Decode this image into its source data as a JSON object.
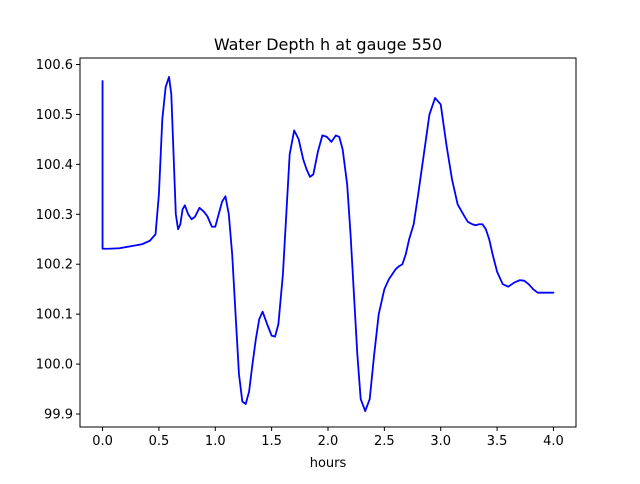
{
  "chart_data": {
    "type": "line",
    "title": "Water Depth h at gauge 550",
    "xlabel": "hours",
    "ylabel": "",
    "xlim": [
      -0.2,
      4.2
    ],
    "ylim": [
      99.874,
      100.613
    ],
    "xticks": [
      0.0,
      0.5,
      1.0,
      1.5,
      2.0,
      2.5,
      3.0,
      3.5,
      4.0
    ],
    "xtick_labels": [
      "0.0",
      "0.5",
      "1.0",
      "1.5",
      "2.0",
      "2.5",
      "3.0",
      "3.5",
      "4.0"
    ],
    "yticks": [
      99.9,
      100.0,
      100.1,
      100.2,
      100.3,
      100.4,
      100.5,
      100.6
    ],
    "ytick_labels": [
      "99.9",
      "100.0",
      "100.1",
      "100.2",
      "100.3",
      "100.4",
      "100.5",
      "100.6"
    ],
    "grid": false,
    "legend": "none",
    "series": [
      {
        "color": "#0000ff",
        "x": [
          0.0,
          0.0,
          0.0,
          0.05,
          0.15,
          0.25,
          0.35,
          0.42,
          0.47,
          0.5,
          0.53,
          0.56,
          0.59,
          0.61,
          0.63,
          0.65,
          0.67,
          0.69,
          0.71,
          0.73,
          0.76,
          0.79,
          0.82,
          0.86,
          0.9,
          0.93,
          0.97,
          1.0,
          1.03,
          1.06,
          1.09,
          1.12,
          1.15,
          1.18,
          1.21,
          1.24,
          1.27,
          1.3,
          1.33,
          1.36,
          1.39,
          1.42,
          1.46,
          1.5,
          1.53,
          1.56,
          1.6,
          1.63,
          1.66,
          1.7,
          1.74,
          1.78,
          1.81,
          1.84,
          1.87,
          1.91,
          1.95,
          1.99,
          2.03,
          2.07,
          2.1,
          2.13,
          2.17,
          2.2,
          2.23,
          2.26,
          2.29,
          2.33,
          2.37,
          2.41,
          2.45,
          2.5,
          2.54,
          2.57,
          2.6,
          2.63,
          2.66,
          2.69,
          2.72,
          2.76,
          2.8,
          2.85,
          2.9,
          2.95,
          3.0,
          3.05,
          3.1,
          3.15,
          3.2,
          3.24,
          3.28,
          3.31,
          3.34,
          3.37,
          3.4,
          3.43,
          3.46,
          3.5,
          3.55,
          3.6,
          3.65,
          3.7,
          3.74,
          3.78,
          3.82,
          3.86,
          3.9,
          3.94,
          3.97,
          4.0
        ],
        "y": [
          100.567,
          100.5,
          100.231,
          100.231,
          100.232,
          100.236,
          100.24,
          100.247,
          100.26,
          100.34,
          100.49,
          100.555,
          100.575,
          100.54,
          100.42,
          100.3,
          100.27,
          100.28,
          100.31,
          100.318,
          100.3,
          100.29,
          100.295,
          100.313,
          100.305,
          100.296,
          100.275,
          100.275,
          100.3,
          100.325,
          100.336,
          100.3,
          100.22,
          100.1,
          99.98,
          99.925,
          99.92,
          99.945,
          100.0,
          100.05,
          100.09,
          100.105,
          100.08,
          100.057,
          100.055,
          100.08,
          100.18,
          100.3,
          100.42,
          100.468,
          100.45,
          100.41,
          100.39,
          100.375,
          100.38,
          100.425,
          100.458,
          100.455,
          100.445,
          100.458,
          100.455,
          100.43,
          100.36,
          100.26,
          100.14,
          100.02,
          99.93,
          99.906,
          99.93,
          100.02,
          100.1,
          100.15,
          100.17,
          100.18,
          100.19,
          100.196,
          100.2,
          100.22,
          100.25,
          100.28,
          100.34,
          100.42,
          100.5,
          100.533,
          100.52,
          100.44,
          100.37,
          100.32,
          100.3,
          100.285,
          100.28,
          100.278,
          100.28,
          100.28,
          100.27,
          100.25,
          100.22,
          100.185,
          100.16,
          100.155,
          100.163,
          100.168,
          100.167,
          100.16,
          100.15,
          100.143,
          100.143,
          100.143,
          100.143,
          100.143
        ]
      }
    ]
  }
}
